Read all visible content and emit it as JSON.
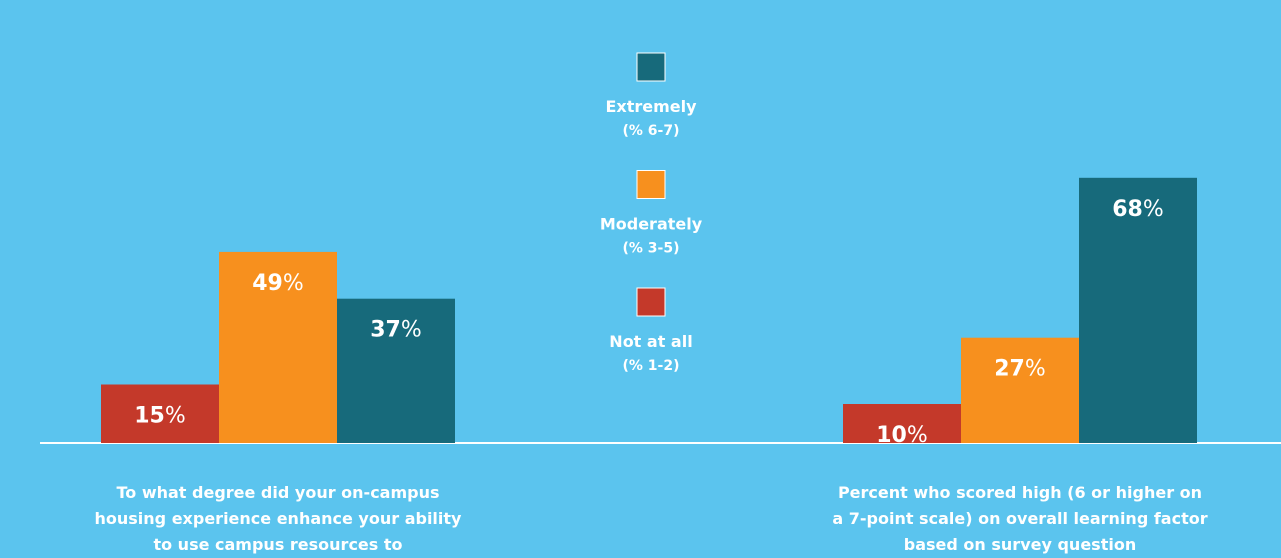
{
  "chart_data": {
    "type": "bar",
    "categories": [
      "To what degree did your on-campus housing experience enhance your ability to use campus resources to",
      "Percent who scored high (6 or higher on a 7-point scale) on overall learning factor based on survey question"
    ],
    "series": [
      {
        "name": "Not at all",
        "note": "(% 1-2)",
        "color": "#c4392a",
        "values": [
          15,
          10
        ],
        "value_labels": [
          "15%",
          "10%"
        ]
      },
      {
        "name": "Moderately",
        "note": "(% 3-5)",
        "color": "#f7901e",
        "values": [
          49,
          27
        ],
        "value_labels": [
          "49%",
          "27%"
        ]
      },
      {
        "name": "Extremely",
        "note": "(% 6-7)",
        "color": "#176a7b",
        "values": [
          37,
          68
        ],
        "value_labels": [
          "37%",
          "68%"
        ]
      }
    ]
  }
}
